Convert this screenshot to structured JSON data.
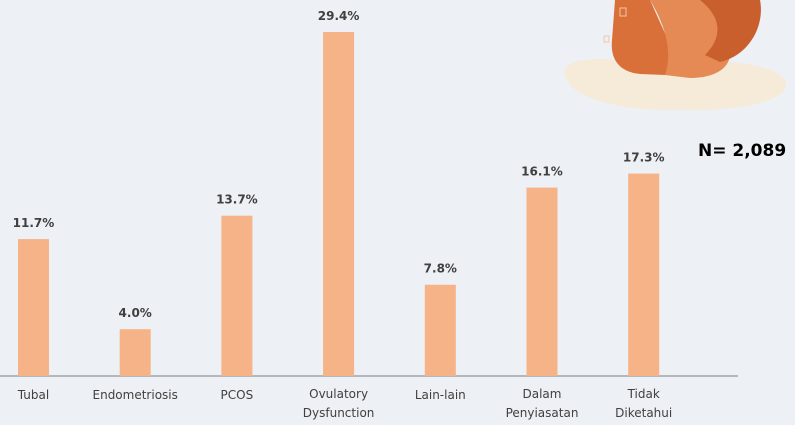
{
  "chart_data": {
    "type": "bar",
    "annotation": "N= 2,089",
    "categories": [
      "Tubal",
      "Endometriosis",
      "PCOS",
      "Ovulatory Dysfunction",
      "Lain-lain",
      "Dalam Penyiasatan",
      "Tidak Diketahui"
    ],
    "values": [
      11.7,
      4.0,
      13.7,
      29.4,
      7.8,
      16.1,
      17.3
    ],
    "value_labels": [
      "11.7%",
      "4.0%",
      "13.7%",
      "29.4%",
      "7.8%",
      "16.1%",
      "17.3%"
    ],
    "color": "#f5b387"
  }
}
